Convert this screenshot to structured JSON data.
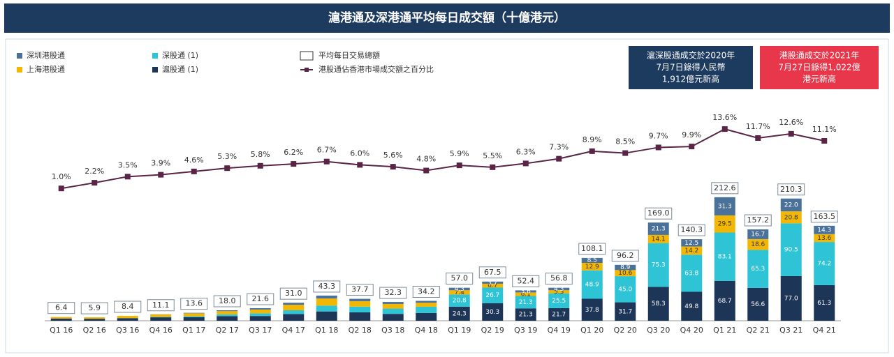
{
  "chart_data": {
    "type": "bar",
    "stacked": true,
    "title": "滬港通及深港通平均每日成交額（十億港元）",
    "categories": [
      "Q1 16",
      "Q2 16",
      "Q3 16",
      "Q4 16",
      "Q1 17",
      "Q2 17",
      "Q3 17",
      "Q4 17",
      "Q1 18",
      "Q2 18",
      "Q3 18",
      "Q4 18",
      "Q1 19",
      "Q2 19",
      "Q3 19",
      "Q4 19",
      "Q1 20",
      "Q2 20",
      "Q3 20",
      "Q4 20",
      "Q1 21",
      "Q2 21",
      "Q3 21",
      "Q4 21"
    ],
    "series": [
      {
        "name": "滬股通 (1)",
        "color": "#1d3557",
        "values": [
          3.8,
          3.4,
          4.5,
          5.9,
          6.0,
          8.0,
          8.2,
          11.5,
          16.0,
          14.5,
          11.8,
          13.4,
          24.3,
          30.3,
          21.3,
          21.7,
          37.8,
          31.7,
          58.3,
          49.8,
          68.7,
          56.6,
          77.0,
          61.3
        ],
        "value_labels": [
          null,
          null,
          null,
          null,
          null,
          null,
          null,
          null,
          null,
          null,
          null,
          null,
          "24.3",
          "30.3",
          "21.3",
          "21.7",
          "37.8",
          "31.7",
          "58.3",
          "49.8",
          "68.7",
          "56.6",
          "77.0",
          "61.3"
        ]
      },
      {
        "name": "深股通 (1)",
        "color": "#2ec4d6",
        "values": [
          0,
          0,
          0,
          0.6,
          1.6,
          3.0,
          4.6,
          6.5,
          10.0,
          9.8,
          9.1,
          10.6,
          20.8,
          26.7,
          21.3,
          25.5,
          48.9,
          45.0,
          75.3,
          63.8,
          83.1,
          65.3,
          90.5,
          74.2
        ],
        "value_labels": [
          null,
          null,
          null,
          null,
          null,
          null,
          null,
          null,
          null,
          null,
          null,
          null,
          "20.8",
          "26.7",
          "21.3",
          "25.5",
          "48.9",
          "45.0",
          "75.3",
          "63.8",
          "83.1",
          "65.3",
          "90.5",
          "74.2"
        ]
      },
      {
        "name": "上海港股通",
        "color": "#f2b705",
        "values": [
          2.6,
          2.5,
          3.9,
          4.3,
          5.2,
          5.5,
          6.5,
          9.5,
          12.3,
          9.4,
          8.0,
          7.0,
          7.4,
          6.7,
          6.1,
          5.3,
          12.9,
          10.6,
          14.1,
          14.2,
          29.5,
          18.6,
          20.8,
          13.6
        ],
        "value_labels": [
          null,
          null,
          null,
          null,
          null,
          null,
          null,
          null,
          null,
          null,
          null,
          null,
          "7.4",
          "6.7",
          "6.1",
          "5.3",
          "12.9",
          "10.6",
          "14.1",
          "14.2",
          "29.5",
          "18.6",
          "20.8",
          "13.6"
        ]
      },
      {
        "name": "深圳港股通",
        "color": "#4a7199",
        "values": [
          0,
          0,
          0,
          0.3,
          0.8,
          1.5,
          2.3,
          3.5,
          5.0,
          4.0,
          3.4,
          3.2,
          4.3,
          3.7,
          3.6,
          4.3,
          8.5,
          8.9,
          21.3,
          12.5,
          31.3,
          16.7,
          22.0,
          14.3
        ],
        "value_labels": [
          null,
          null,
          null,
          null,
          null,
          null,
          null,
          null,
          null,
          null,
          null,
          null,
          "4.3",
          "3.7",
          "3.6",
          "4.3",
          "8.5",
          "8.9",
          "21.3",
          "12.5",
          "31.3",
          "16.7",
          "22.0",
          "14.3"
        ]
      },
      {
        "name": "港股通佔香港市場成交額之百分比",
        "color": "#5a2446",
        "type": "line",
        "axis": "y2",
        "values": [
          1.0,
          2.2,
          3.5,
          3.9,
          4.6,
          5.3,
          5.8,
          6.2,
          6.7,
          6.0,
          5.6,
          4.8,
          5.9,
          5.5,
          6.3,
          7.3,
          8.9,
          8.5,
          9.7,
          9.9,
          13.6,
          11.7,
          12.6,
          11.1
        ],
        "value_labels": [
          "1.0%",
          "2.2%",
          "3.5%",
          "3.9%",
          "4.6%",
          "5.3%",
          "5.8%",
          "6.2%",
          "6.7%",
          "6.0%",
          "5.6%",
          "4.8%",
          "5.9%",
          "5.5%",
          "6.3%",
          "7.3%",
          "8.9%",
          "8.5%",
          "9.7%",
          "9.9%",
          "13.6%",
          "11.7%",
          "12.6%",
          "11.1%"
        ]
      }
    ],
    "totals": {
      "name": "平均每日交易總額",
      "values": [
        6.4,
        5.9,
        8.4,
        11.1,
        13.6,
        18.0,
        21.6,
        31.0,
        43.3,
        37.7,
        32.3,
        34.2,
        57.0,
        67.5,
        52.4,
        56.8,
        108.1,
        96.2,
        169.0,
        140.3,
        212.6,
        157.2,
        210.3,
        163.5
      ],
      "value_labels": [
        "6.4",
        "5.9",
        "8.4",
        "11.1",
        "13.6",
        "18.0",
        "21.6",
        "31.0",
        "43.3",
        "37.7",
        "32.3",
        "34.2",
        "57.0",
        "67.5",
        "52.4",
        "56.8",
        "108.1",
        "96.2",
        "169.0",
        "140.3",
        "212.6",
        "157.2",
        "210.3",
        "163.5"
      ]
    },
    "ylim": [
      0,
      432
    ],
    "y2lim": [
      -27.1,
      26.2
    ],
    "annotations": [
      {
        "lines": [
          "滬深股通成交於2020年",
          "7月7日錄得人民幣",
          "1,912億元新高"
        ],
        "color": "#1d3a5f"
      },
      {
        "lines": [
          "港股通成交於2021年",
          "7月27日錄得1,022億",
          "港元新高"
        ],
        "color": "#e8374a"
      }
    ]
  }
}
